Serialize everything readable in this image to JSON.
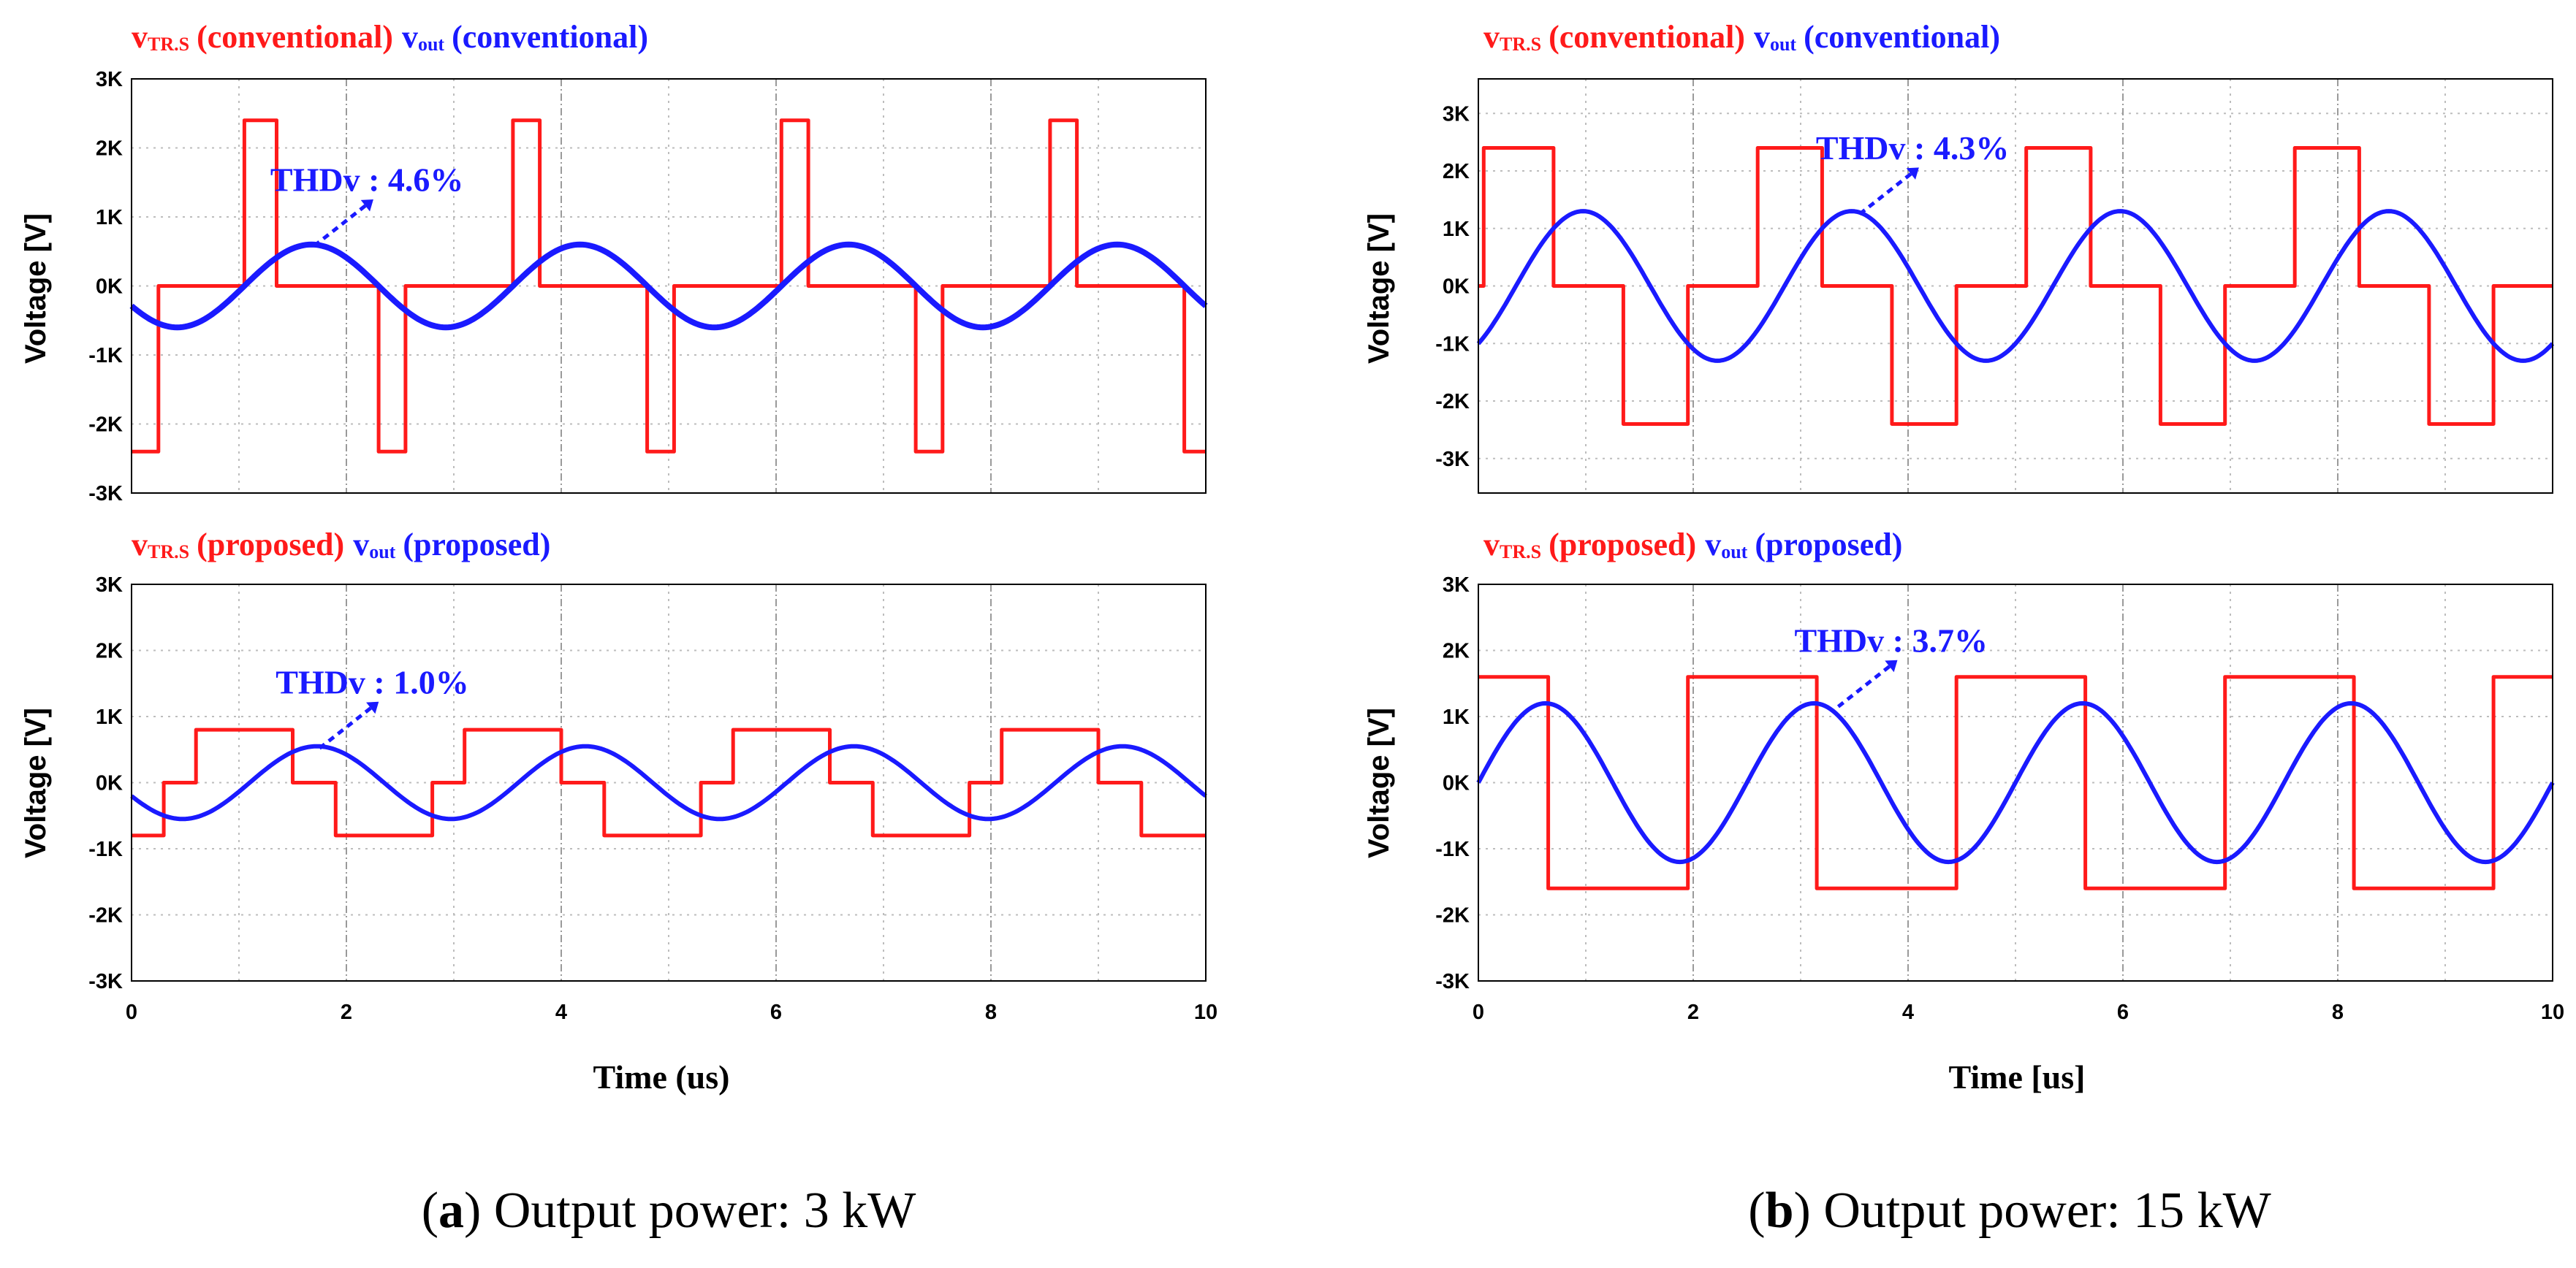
{
  "colors": {
    "vtr": "#ff1a1a",
    "vout": "#1a1aff",
    "grid": "#bdbdbd"
  },
  "chart_data": [
    {
      "type": "line",
      "title": {
        "vtr_symbol": "v",
        "vtr_sub": "TR.S",
        "vtr_label": "(conventional)",
        "vout_symbol": "v",
        "vout_sub": "out",
        "vout_label": "(conventional)"
      },
      "ylabel": "Voltage [V]",
      "xlim": [
        0,
        10
      ],
      "ylim": [
        -3000,
        3000
      ],
      "yticks": [
        {
          "v": 3000,
          "label": "3K"
        },
        {
          "v": 2000,
          "label": "2K"
        },
        {
          "v": 1000,
          "label": "1K"
        },
        {
          "v": 0,
          "label": "0K"
        },
        {
          "v": -1000,
          "label": "-1K"
        },
        {
          "v": -2000,
          "label": "-2K"
        },
        {
          "v": -3000,
          "label": "-3K"
        }
      ],
      "annotation": {
        "text": "THDv : 4.6%",
        "at": [
          1.7,
          580
        ]
      },
      "series": [
        {
          "name": "vTR.S (conventional)",
          "kind": "step",
          "points": [
            [
              0,
              -2400
            ],
            [
              0.25,
              -2400
            ],
            [
              0.25,
              0
            ],
            [
              1.05,
              0
            ],
            [
              1.05,
              2400
            ],
            [
              1.35,
              2400
            ],
            [
              1.35,
              0
            ],
            [
              2.3,
              0
            ],
            [
              2.3,
              -2400
            ],
            [
              2.55,
              -2400
            ],
            [
              2.55,
              0
            ],
            [
              3.55,
              0
            ],
            [
              3.55,
              2400
            ],
            [
              3.8,
              2400
            ],
            [
              3.8,
              0
            ],
            [
              4.8,
              0
            ],
            [
              4.8,
              -2400
            ],
            [
              5.05,
              -2400
            ],
            [
              5.05,
              0
            ],
            [
              6.05,
              0
            ],
            [
              6.05,
              2400
            ],
            [
              6.3,
              2400
            ],
            [
              6.3,
              0
            ],
            [
              7.3,
              0
            ],
            [
              7.3,
              -2400
            ],
            [
              7.55,
              -2400
            ],
            [
              7.55,
              0
            ],
            [
              8.55,
              0
            ],
            [
              8.55,
              2400
            ],
            [
              8.8,
              2400
            ],
            [
              8.8,
              0
            ],
            [
              9.8,
              0
            ],
            [
              9.8,
              -2400
            ],
            [
              10,
              -2400
            ]
          ]
        },
        {
          "name": "vout (conventional)",
          "kind": "sine",
          "amplitude": 600,
          "period": 2.5,
          "phase": 1.05,
          "xmax": 10
        }
      ]
    },
    {
      "type": "line",
      "title": {
        "vtr_symbol": "v",
        "vtr_sub": "TR.S",
        "vtr_label": "(proposed)",
        "vout_symbol": "v",
        "vout_sub": "out",
        "vout_label": "(proposed)"
      },
      "ylabel": "Voltage [V]",
      "xlabel": "Time (us)",
      "xlim": [
        0,
        10
      ],
      "ylim": [
        -3000,
        3000
      ],
      "xticks": [
        {
          "v": 0,
          "label": "0"
        },
        {
          "v": 2,
          "label": "2"
        },
        {
          "v": 4,
          "label": "4"
        },
        {
          "v": 6,
          "label": "6"
        },
        {
          "v": 8,
          "label": "8"
        },
        {
          "v": 10,
          "label": "10"
        }
      ],
      "yticks": [
        {
          "v": 3000,
          "label": "3K"
        },
        {
          "v": 2000,
          "label": "2K"
        },
        {
          "v": 1000,
          "label": "1K"
        },
        {
          "v": 0,
          "label": "0K"
        },
        {
          "v": -1000,
          "label": "-1K"
        },
        {
          "v": -2000,
          "label": "-2K"
        },
        {
          "v": -3000,
          "label": "-3K"
        }
      ],
      "annotation": {
        "text": "THDv : 1.0%",
        "at": [
          1.75,
          520
        ]
      },
      "series": [
        {
          "name": "vTR.S (proposed)",
          "kind": "step",
          "points": [
            [
              0,
              -800
            ],
            [
              0.3,
              -800
            ],
            [
              0.3,
              0
            ],
            [
              0.6,
              0
            ],
            [
              0.6,
              800
            ],
            [
              1.5,
              800
            ],
            [
              1.5,
              0
            ],
            [
              1.9,
              0
            ],
            [
              1.9,
              -800
            ],
            [
              2.8,
              -800
            ],
            [
              2.8,
              0
            ],
            [
              3.1,
              0
            ],
            [
              3.1,
              800
            ],
            [
              4.0,
              800
            ],
            [
              4.0,
              0
            ],
            [
              4.4,
              0
            ],
            [
              4.4,
              -800
            ],
            [
              5.3,
              -800
            ],
            [
              5.3,
              0
            ],
            [
              5.6,
              0
            ],
            [
              5.6,
              800
            ],
            [
              6.5,
              800
            ],
            [
              6.5,
              0
            ],
            [
              6.9,
              0
            ],
            [
              6.9,
              -800
            ],
            [
              7.8,
              -800
            ],
            [
              7.8,
              0
            ],
            [
              8.1,
              0
            ],
            [
              8.1,
              800
            ],
            [
              9.0,
              800
            ],
            [
              9.0,
              0
            ],
            [
              9.4,
              0
            ],
            [
              9.4,
              -800
            ],
            [
              10,
              -800
            ]
          ]
        },
        {
          "name": "vout (proposed)",
          "kind": "sine",
          "amplitude": 550,
          "period": 2.5,
          "phase": 1.1,
          "xmax": 10
        }
      ]
    },
    {
      "type": "line",
      "title": {
        "vtr_symbol": "v",
        "vtr_sub": "TR.S",
        "vtr_label": "(conventional)",
        "vout_symbol": "v",
        "vout_sub": "out",
        "vout_label": "(conventional)"
      },
      "ylabel": "Voltage [V]",
      "xlim": [
        0,
        10
      ],
      "ylim": [
        -3600,
        3600
      ],
      "yticks": [
        {
          "v": 3000,
          "label": "3K"
        },
        {
          "v": 2000,
          "label": "2K"
        },
        {
          "v": 1000,
          "label": "1K"
        },
        {
          "v": 0,
          "label": "0K"
        },
        {
          "v": -1000,
          "label": "-1K"
        },
        {
          "v": -2000,
          "label": "-2K"
        },
        {
          "v": -3000,
          "label": "-3K"
        }
      ],
      "annotation": {
        "text": "THDv : 4.3%",
        "at": [
          3.55,
          1250
        ]
      },
      "series": [
        {
          "name": "vTR.S (conventional)",
          "kind": "step",
          "points": [
            [
              0,
              0
            ],
            [
              0.05,
              0
            ],
            [
              0.05,
              2400
            ],
            [
              0.7,
              2400
            ],
            [
              0.7,
              0
            ],
            [
              1.35,
              0
            ],
            [
              1.35,
              -2400
            ],
            [
              1.95,
              -2400
            ],
            [
              1.95,
              0
            ],
            [
              2.6,
              0
            ],
            [
              2.6,
              2400
            ],
            [
              3.2,
              2400
            ],
            [
              3.2,
              0
            ],
            [
              3.85,
              0
            ],
            [
              3.85,
              -2400
            ],
            [
              4.45,
              -2400
            ],
            [
              4.45,
              0
            ],
            [
              5.1,
              0
            ],
            [
              5.1,
              2400
            ],
            [
              5.7,
              2400
            ],
            [
              5.7,
              0
            ],
            [
              6.35,
              0
            ],
            [
              6.35,
              -2400
            ],
            [
              6.95,
              -2400
            ],
            [
              6.95,
              0
            ],
            [
              7.6,
              0
            ],
            [
              7.6,
              2400
            ],
            [
              8.2,
              2400
            ],
            [
              8.2,
              0
            ],
            [
              8.85,
              0
            ],
            [
              8.85,
              -2400
            ],
            [
              9.45,
              -2400
            ],
            [
              9.45,
              0
            ],
            [
              10,
              0
            ]
          ]
        },
        {
          "name": "vout (conventional)",
          "kind": "sine",
          "amplitude": 1300,
          "period": 2.5,
          "phase": 0.35,
          "xmax": 10
        }
      ]
    },
    {
      "type": "line",
      "title": {
        "vtr_symbol": "v",
        "vtr_sub": "TR.S",
        "vtr_label": "(proposed)",
        "vout_symbol": "v",
        "vout_sub": "out",
        "vout_label": "(proposed)"
      },
      "ylabel": "Voltage [V]",
      "xlabel": "Time [us]",
      "xlim": [
        0,
        10
      ],
      "ylim": [
        -3000,
        3000
      ],
      "xticks": [
        {
          "v": 0,
          "label": "0"
        },
        {
          "v": 2,
          "label": "2"
        },
        {
          "v": 4,
          "label": "4"
        },
        {
          "v": 6,
          "label": "6"
        },
        {
          "v": 8,
          "label": "8"
        },
        {
          "v": 10,
          "label": "10"
        }
      ],
      "yticks": [
        {
          "v": 3000,
          "label": "3K"
        },
        {
          "v": 2000,
          "label": "2K"
        },
        {
          "v": 1000,
          "label": "1K"
        },
        {
          "v": 0,
          "label": "0K"
        },
        {
          "v": -1000,
          "label": "-1K"
        },
        {
          "v": -2000,
          "label": "-2K"
        },
        {
          "v": -3000,
          "label": "-3K"
        }
      ],
      "annotation": {
        "text": "THDv : 3.7%",
        "at": [
          3.35,
          1150
        ]
      },
      "series": [
        {
          "name": "vTR.S (proposed)",
          "kind": "step",
          "points": [
            [
              0,
              1600
            ],
            [
              0.65,
              1600
            ],
            [
              0.65,
              -1600
            ],
            [
              1.95,
              -1600
            ],
            [
              1.95,
              1600
            ],
            [
              3.15,
              1600
            ],
            [
              3.15,
              -1600
            ],
            [
              4.45,
              -1600
            ],
            [
              4.45,
              1600
            ],
            [
              5.65,
              1600
            ],
            [
              5.65,
              -1600
            ],
            [
              6.95,
              -1600
            ],
            [
              6.95,
              1600
            ],
            [
              8.15,
              1600
            ],
            [
              8.15,
              -1600
            ],
            [
              9.45,
              -1600
            ],
            [
              9.45,
              1600
            ],
            [
              10,
              1600
            ]
          ]
        },
        {
          "name": "vout (proposed)",
          "kind": "sine",
          "amplitude": 1200,
          "period": 2.5,
          "phase": 0,
          "xmax": 10
        }
      ]
    }
  ],
  "captions": [
    {
      "letter": "a",
      "text": "Output power: 3 kW"
    },
    {
      "letter": "b",
      "text": "Output power: 15 kW"
    }
  ]
}
